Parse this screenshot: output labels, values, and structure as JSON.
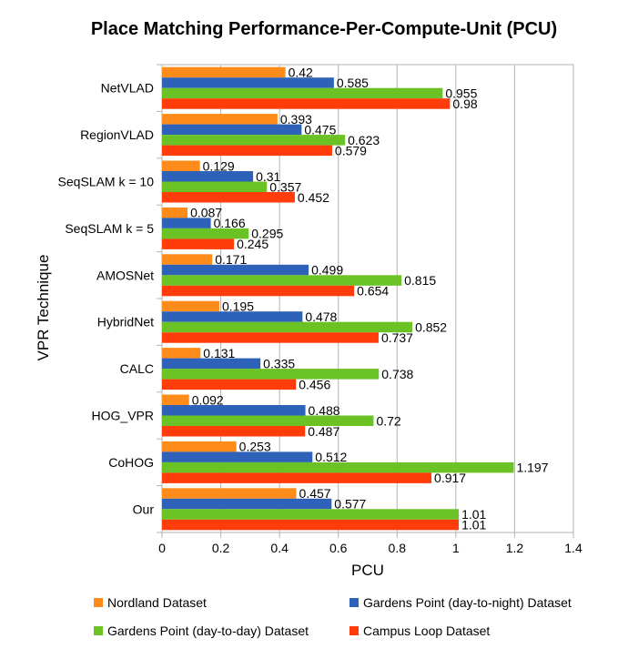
{
  "chart_data": {
    "type": "bar",
    "orientation": "horizontal",
    "title": "Place Matching Performance-Per-Compute-Unit (PCU)",
    "xlabel": "PCU",
    "ylabel": "VPR Technique",
    "xlim": [
      0,
      1.4
    ],
    "xticks": [
      "0",
      "0.2",
      "0.4",
      "0.6",
      "0.8",
      "1",
      "1.2",
      "1.4"
    ],
    "xtick_values": [
      0,
      0.2,
      0.4,
      0.6,
      0.8,
      1.0,
      1.2,
      1.4
    ],
    "grid": true,
    "legend_position": "bottom",
    "categories": [
      "NetVLAD",
      "RegionVLAD",
      "SeqSLAM k = 10",
      "SeqSLAM k = 5",
      "AMOSNet",
      "HybridNet",
      "CALC",
      "HOG_VPR",
      "CoHOG",
      "Our"
    ],
    "series": [
      {
        "name": "Nordland Dataset",
        "color": "#ff8c1a",
        "values": [
          0.42,
          0.393,
          0.129,
          0.087,
          0.171,
          0.195,
          0.131,
          0.092,
          0.253,
          0.457
        ],
        "labels": [
          "0.42",
          "0.393",
          "0.129",
          "0.087",
          "0.171",
          "0.195",
          "0.131",
          "0.092",
          "0.253",
          "0.457"
        ]
      },
      {
        "name": "Gardens Point (day-to-night) Dataset",
        "color": "#2e62b8",
        "values": [
          0.585,
          0.475,
          0.31,
          0.166,
          0.499,
          0.478,
          0.335,
          0.488,
          0.512,
          0.577
        ],
        "labels": [
          "0.585",
          "0.475",
          "0.31",
          "0.166",
          "0.499",
          "0.478",
          "0.335",
          "0.488",
          "0.512",
          "0.577"
        ]
      },
      {
        "name": "Gardens Point (day-to-day) Dataset",
        "color": "#6bc225",
        "values": [
          0.955,
          0.623,
          0.357,
          0.295,
          0.815,
          0.852,
          0.738,
          0.72,
          1.197,
          1.01
        ],
        "labels": [
          "0.955",
          "0.623",
          "0.357",
          "0.295",
          "0.815",
          "0.852",
          "0.738",
          "0.72",
          "1.197",
          "1.01"
        ]
      },
      {
        "name": "Campus Loop Dataset",
        "color": "#ff3c0a",
        "values": [
          0.98,
          0.579,
          0.452,
          0.245,
          0.654,
          0.737,
          0.456,
          0.487,
          0.917,
          1.01
        ],
        "labels": [
          "0.98",
          "0.579",
          "0.452",
          "0.245",
          "0.654",
          "0.737",
          "0.456",
          "0.487",
          "0.917",
          "1.01"
        ]
      }
    ]
  }
}
